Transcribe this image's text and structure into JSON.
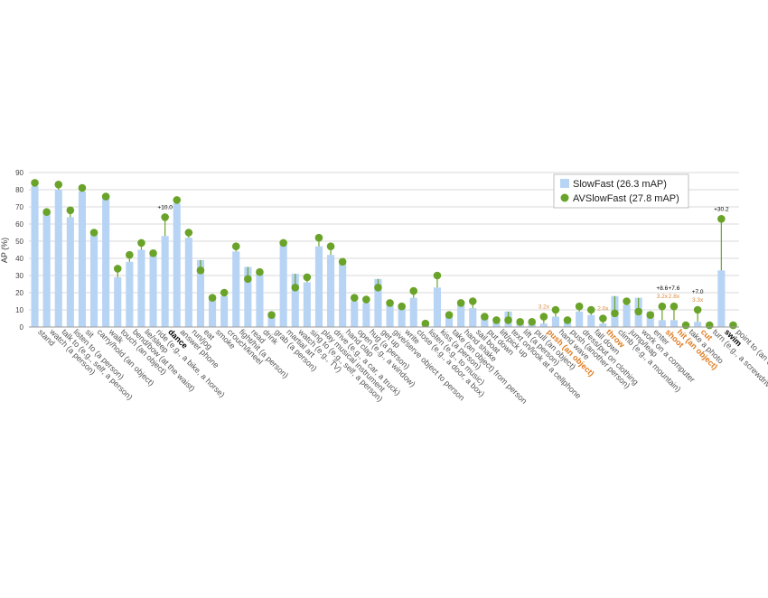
{
  "chart_data": {
    "type": "bar",
    "ylabel": "AP (%)",
    "ylim": [
      0,
      90
    ],
    "yticks": [
      0,
      10,
      20,
      30,
      40,
      50,
      60,
      70,
      80,
      90
    ],
    "grid": true,
    "legend_position": "top-right",
    "categories": [
      "stand",
      "watch (a person)",
      "talk to (e.g., self, a person)",
      "listen to (a person)",
      "sit",
      "carry/hold (an object)",
      "walk",
      "touch (an object)",
      "bend/bow (at the waist)",
      "lie/sleep",
      "ride (e.g., a bike, a horse)",
      "dance",
      "answer phone",
      "run/jog",
      "eat",
      "smoke",
      "crouch/kneel",
      "fight/hit (a person)",
      "read",
      "drink",
      "grab (a person)",
      "martial art",
      "watch (e.g., TV)",
      "sing to (e.g., self, a person)",
      "play musical instrument",
      "drive (e.g., a car, a truck)",
      "hand clap",
      "open (e.g., a window)",
      "hug (a person)",
      "get up",
      "give/serve object to person",
      "write",
      "close (e.g., a door, a box)",
      "listen (e.g., to music)",
      "kiss (a person)",
      "take (an object) from person",
      "hand shake",
      "sail boat",
      "put down",
      "lift/pick up",
      "text on/look at a cellphone",
      "lift (a person)",
      "pull (an object)",
      "push (an object)",
      "hand wave",
      "push (another person)",
      "dress/put on clothing",
      "fall down",
      "throw",
      "climb (e.g., a mountain)",
      "jump/leap",
      "work on a computer",
      "enter",
      "shoot",
      "hit (an object)",
      "take a photo",
      "cut",
      "turn (e.g., a screwdriver)",
      "swim",
      "point to (an object)"
    ],
    "series": [
      {
        "name": "SlowFast (26.3 mAP)",
        "color": "#b8d4f5",
        "values": [
          82,
          67,
          80,
          64,
          79,
          54,
          75,
          29,
          38,
          45,
          42,
          53,
          72,
          52,
          39,
          16,
          18,
          44,
          35,
          31,
          6,
          48,
          31,
          26,
          47,
          42,
          37,
          15,
          14,
          28,
          13,
          13,
          17,
          2,
          23,
          6,
          13,
          11,
          6,
          4,
          9,
          3,
          2,
          2,
          6,
          4,
          9,
          7,
          2,
          18,
          13,
          17,
          9,
          4,
          4,
          1,
          3,
          1,
          33,
          1
        ]
      },
      {
        "name": "AVSlowFast (27.8 mAP)",
        "color": "#6aa329",
        "values": [
          84,
          67,
          83,
          68,
          81,
          55,
          76,
          34,
          42,
          49,
          43,
          64,
          74,
          55,
          33,
          17,
          20,
          47,
          28,
          32,
          7,
          49,
          23,
          29,
          52,
          47,
          38,
          17,
          16,
          23,
          14,
          12,
          21,
          2,
          30,
          7,
          14,
          15,
          6,
          4,
          4,
          3,
          3,
          6,
          10,
          4,
          12,
          10,
          5,
          8,
          15,
          9,
          7,
          12,
          12,
          1,
          10,
          1,
          63,
          1
        ]
      }
    ],
    "highlight_labels": {
      "bold": [
        "dance",
        "swim"
      ],
      "orange": [
        "push (an object)",
        "throw",
        "shoot",
        "hit (an object)",
        "cut"
      ]
    },
    "annotations": [
      {
        "category": "dance",
        "text": "+10.0",
        "color": "#000000"
      },
      {
        "category": "push (an object)",
        "text": "3.2x",
        "color": "#e08a3c"
      },
      {
        "category": "throw",
        "text": "2.0x",
        "color": "#e08a3c"
      },
      {
        "category": "shoot",
        "text": "3.2x",
        "color": "#e08a3c"
      },
      {
        "category": "shoot",
        "text": "+8.6",
        "color": "#000000"
      },
      {
        "category": "hit (an object)",
        "text": "2.8x",
        "color": "#e08a3c"
      },
      {
        "category": "hit (an object)",
        "text": "+7.6",
        "color": "#000000"
      },
      {
        "category": "cut",
        "text": "3.3x",
        "color": "#e08a3c"
      },
      {
        "category": "cut",
        "text": "+7.0",
        "color": "#000000"
      },
      {
        "category": "swim",
        "text": "+30.2",
        "color": "#000000"
      }
    ]
  }
}
